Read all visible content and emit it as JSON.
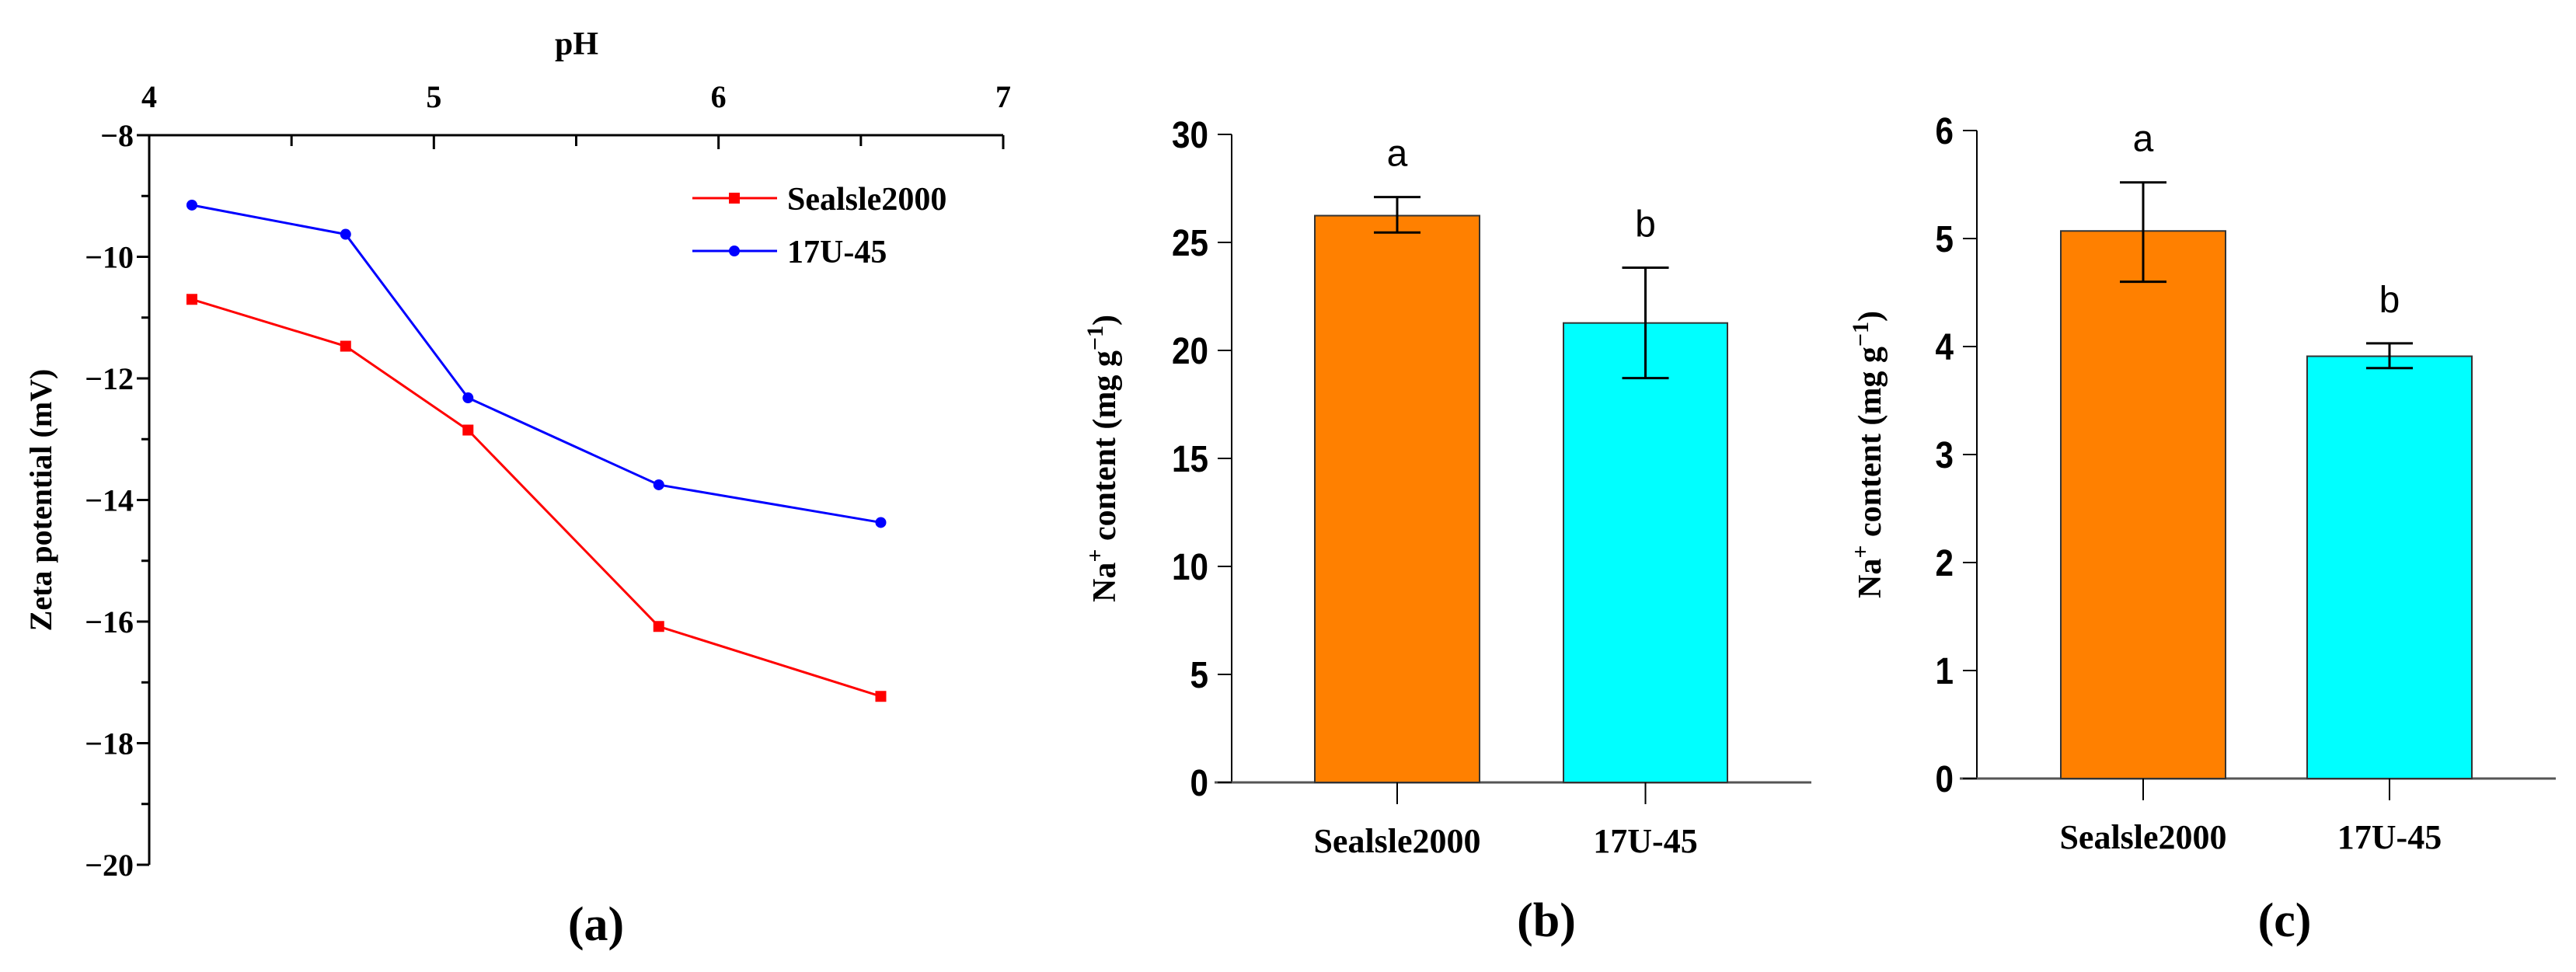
{
  "chart_data": [
    {
      "panel_label": "(a)",
      "type": "line",
      "title": "",
      "xlabel": "pH",
      "ylabel": "Zeta potential (mV)",
      "xlim": [
        4,
        7
      ],
      "ylim": [
        -20,
        -8
      ],
      "xticks": [
        4,
        5,
        6,
        7
      ],
      "xtick_labels": [
        "4",
        "5",
        "6",
        "7"
      ],
      "yticks": [
        -8,
        -10,
        -12,
        -14,
        -16,
        -18,
        -20
      ],
      "ytick_labels": [
        "−8",
        "−10",
        "−12",
        "−14",
        "−16",
        "−18",
        "−20"
      ],
      "legend_position": "top-right",
      "grid": false,
      "series": [
        {
          "name": "Sealsle2000",
          "color": "#ff0000",
          "marker": "square",
          "x": [
            4.15,
            4.69,
            5.12,
            5.79,
            6.57
          ],
          "y": [
            -10.7,
            -11.47,
            -12.85,
            -16.08,
            -17.23
          ]
        },
        {
          "name": "17U-45",
          "color": "#0000ff",
          "marker": "circle",
          "x": [
            4.15,
            4.69,
            5.12,
            5.79,
            6.57
          ],
          "y": [
            -9.15,
            -9.63,
            -12.32,
            -13.75,
            -14.37
          ]
        }
      ]
    },
    {
      "panel_label": "(b)",
      "type": "bar",
      "ylabel_main": "Na",
      "ylabel_sup": "+",
      "ylabel_rest": " content (mg g",
      "ylabel_sup2": "−1",
      "ylabel_end": ")",
      "ylim": [
        0,
        30
      ],
      "yticks": [
        0,
        5,
        10,
        15,
        20,
        25,
        30
      ],
      "ytick_labels": [
        "0",
        "5",
        "10",
        "15",
        "20",
        "25",
        "30"
      ],
      "categories": [
        "Sealsle2000",
        "17U-45"
      ],
      "values": [
        26.24,
        21.27
      ],
      "error_upper": [
        27.1,
        23.83
      ],
      "error_lower": [
        25.46,
        18.72
      ],
      "significance": [
        "a",
        "b"
      ],
      "colors": [
        "#ff8000",
        "#00ffff"
      ]
    },
    {
      "panel_label": "(c)",
      "type": "bar",
      "ylabel_main": "Na",
      "ylabel_sup": "+",
      "ylabel_rest": " content (mg g",
      "ylabel_sup2": "−1",
      "ylabel_end": ")",
      "ylim": [
        0,
        6
      ],
      "yticks": [
        0,
        1,
        2,
        3,
        4,
        5,
        6
      ],
      "ytick_labels": [
        "0",
        "1",
        "2",
        "3",
        "4",
        "5",
        "6"
      ],
      "categories": [
        "Sealsle2000",
        "17U-45"
      ],
      "values": [
        5.07,
        3.91
      ],
      "error_upper": [
        5.52,
        4.03
      ],
      "error_lower": [
        4.6,
        3.8
      ],
      "significance": [
        "a",
        "b"
      ],
      "colors": [
        "#ff8000",
        "#00ffff"
      ]
    }
  ]
}
